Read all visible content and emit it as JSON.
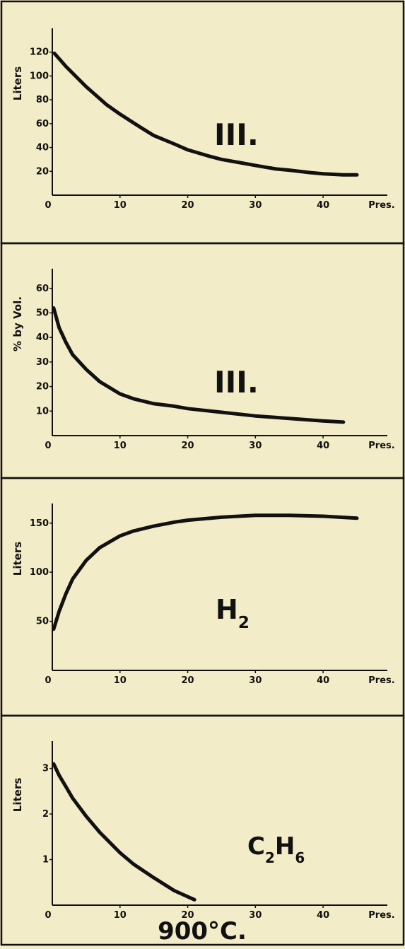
{
  "colors": {
    "paper": "#f2ecc8",
    "ink": "#111111"
  },
  "caption": "900°C.",
  "chart_data": [
    {
      "type": "line",
      "ylabel": "Liters",
      "xlabel": "Pres.",
      "annotation": "III.",
      "annotation_sub": "",
      "xlim": [
        0,
        46
      ],
      "ylim": [
        0,
        140
      ],
      "x_ticks": [
        0,
        10,
        20,
        30,
        40
      ],
      "x_tick_labels": [
        "0",
        "10",
        "20",
        "30",
        "40"
      ],
      "y_ticks": [
        20,
        40,
        60,
        80,
        100,
        120
      ],
      "y_tick_labels": [
        "20",
        "40",
        "60",
        "80",
        "100",
        "120"
      ],
      "series": [
        {
          "x": [
            0.3,
            2,
            5,
            8,
            10,
            13,
            15,
            18,
            20,
            23,
            25,
            28,
            30,
            33,
            35,
            38,
            40,
            43,
            45
          ],
          "y": [
            119,
            108,
            91,
            76,
            68,
            57,
            50,
            43,
            38,
            33,
            30,
            27,
            25,
            22,
            21,
            19,
            18,
            17,
            17
          ]
        }
      ]
    },
    {
      "type": "line",
      "ylabel": "% by Vol.",
      "xlabel": "Pres.",
      "annotation": "III.",
      "annotation_sub": "",
      "xlim": [
        0,
        46
      ],
      "ylim": [
        0,
        68
      ],
      "x_ticks": [
        0,
        10,
        20,
        30,
        40
      ],
      "x_tick_labels": [
        "0",
        "10",
        "20",
        "30",
        "40"
      ],
      "y_ticks": [
        10,
        20,
        30,
        40,
        50,
        60
      ],
      "y_tick_labels": [
        "10",
        "20",
        "30",
        "40",
        "50",
        "60"
      ],
      "series": [
        {
          "x": [
            0.2,
            1,
            2,
            3,
            5,
            7,
            10,
            12,
            15,
            18,
            20,
            25,
            30,
            35,
            40,
            43
          ],
          "y": [
            52,
            44,
            38,
            33,
            27,
            22,
            17,
            15,
            13,
            12,
            11,
            9.5,
            8,
            7,
            6,
            5.5
          ]
        }
      ]
    },
    {
      "type": "line",
      "ylabel": "Liters",
      "xlabel": "Pres.",
      "annotation": "H",
      "annotation_sub": "2",
      "xlim": [
        0,
        46
      ],
      "ylim": [
        0,
        170
      ],
      "x_ticks": [
        0,
        10,
        20,
        30,
        40
      ],
      "x_tick_labels": [
        "0",
        "10",
        "20",
        "30",
        "40"
      ],
      "y_ticks": [
        50,
        100,
        150
      ],
      "y_tick_labels": [
        "50",
        "100",
        "150"
      ],
      "series": [
        {
          "x": [
            0.2,
            1,
            2,
            3,
            5,
            7,
            10,
            12,
            15,
            18,
            20,
            25,
            30,
            35,
            40,
            45
          ],
          "y": [
            42,
            60,
            78,
            93,
            112,
            125,
            137,
            142,
            147,
            151,
            153,
            156,
            158,
            158,
            157,
            155
          ]
        }
      ]
    },
    {
      "type": "line",
      "ylabel": "Liters",
      "xlabel": "Pres.",
      "annotation": "C",
      "annotation_sub": "2",
      "annotation2": "H",
      "annotation2_sub": "6",
      "xlim": [
        0,
        46
      ],
      "ylim": [
        0,
        3.6
      ],
      "x_ticks": [
        0,
        10,
        20,
        30,
        40
      ],
      "x_tick_labels": [
        "0",
        "10",
        "20",
        "30",
        "40"
      ],
      "y_ticks": [
        1,
        2,
        3
      ],
      "y_tick_labels": [
        "1",
        "2",
        "3"
      ],
      "series": [
        {
          "x": [
            0.2,
            1,
            2,
            3,
            5,
            7,
            10,
            12,
            15,
            18,
            21
          ],
          "y": [
            3.1,
            2.85,
            2.6,
            2.35,
            1.95,
            1.6,
            1.15,
            0.9,
            0.6,
            0.32,
            0.12
          ]
        }
      ]
    }
  ]
}
